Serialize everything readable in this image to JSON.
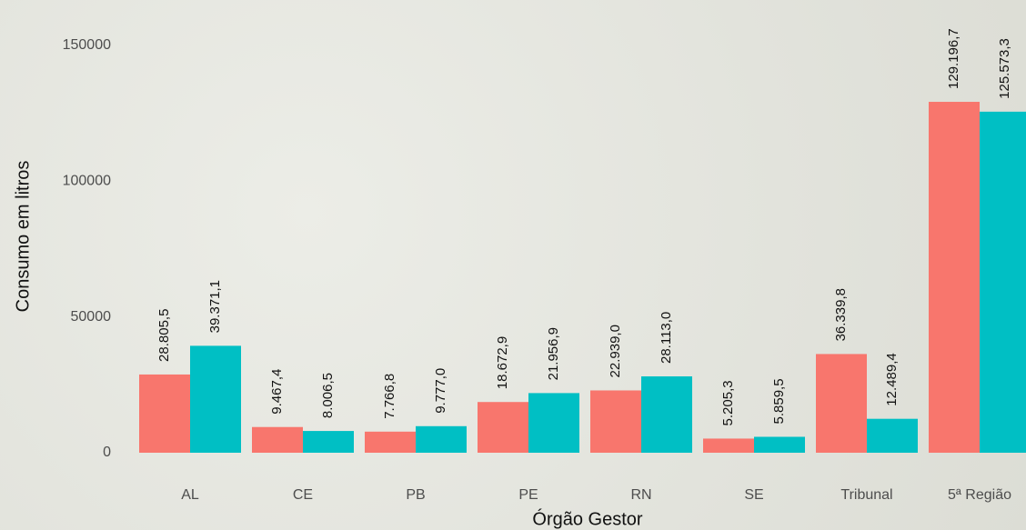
{
  "chart_data": {
    "type": "bar",
    "x_label": "Órgão Gestor",
    "y_label": "Consumo em litros",
    "categories": [
      "AL",
      "CE",
      "PB",
      "PE",
      "RN",
      "SE",
      "Tribunal",
      "5ª Região"
    ],
    "series": [
      {
        "color": "#F8766D",
        "values": [
          28805.5,
          9467.4,
          7766.8,
          18672.9,
          22939.0,
          5205.3,
          36339.8,
          129196.7
        ],
        "value_labels": [
          "28.805,5",
          "9.467,4",
          "7.766,8",
          "18.672,9",
          "22.939,0",
          "5.205,3",
          "36.339,8",
          "129.196,7"
        ]
      },
      {
        "color": "#00BFC4",
        "values": [
          39371.1,
          8006.5,
          9777.0,
          21956.9,
          28113.0,
          5859.5,
          12489.4,
          125573.3
        ],
        "value_labels": [
          "39.371,1",
          "8.006,5",
          "9.777,0",
          "21.956,9",
          "28.113,0",
          "5.859,5",
          "12.489,4",
          "125.573,3"
        ]
      }
    ],
    "ylim": [
      0,
      160000
    ],
    "yticks": [
      0,
      50000,
      100000,
      150000
    ],
    "grid": false
  }
}
